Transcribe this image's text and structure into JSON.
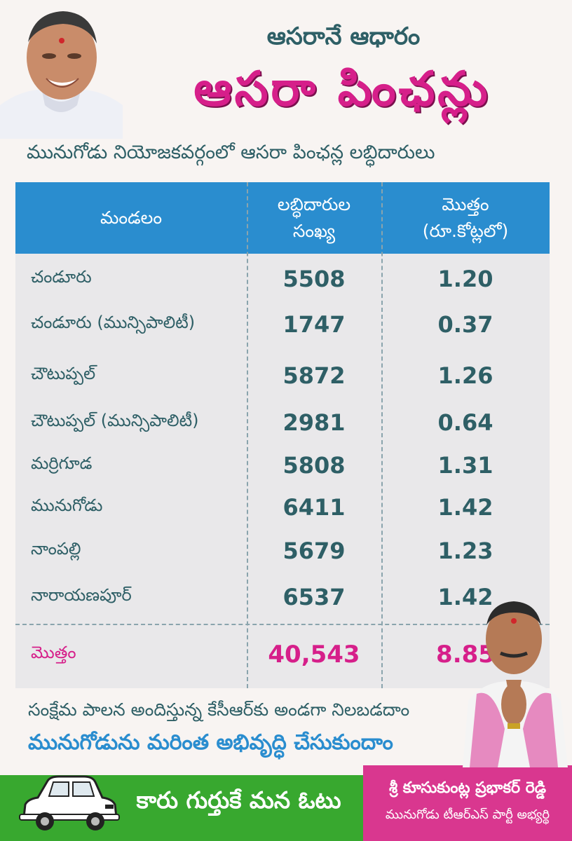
{
  "header": {
    "subtitle": "ఆసరానే ఆధారం",
    "title": "ఆసరా పింఛన్లు"
  },
  "intro": "మునుగోడు నియోజకవర్గంలో ఆసరా పింఛన్ల లబ్ధిదారులు",
  "table": {
    "headers": {
      "col1": "మండలం",
      "col2_line1": "లబ్ధిదారుల",
      "col2_line2": "సంఖ్య",
      "col3_line1": "మొత్తం",
      "col3_line2": "(రూ.కోట్లలో)"
    },
    "rows": [
      {
        "name": "చండూరు",
        "count": "5508",
        "amount": "1.20"
      },
      {
        "name": "చండూరు (మున్సిపాలిటీ)",
        "count": "1747",
        "amount": "0.37"
      },
      {
        "name": "చౌటుప్పల్",
        "count": "5872",
        "amount": "1.26"
      },
      {
        "name": "చౌటుప్పల్ (మున్సిపాలిటీ)",
        "count": "2981",
        "amount": "0.64"
      },
      {
        "name": "మర్రిగూడ",
        "count": "5808",
        "amount": "1.31"
      },
      {
        "name": "మునుగోడు",
        "count": "6411",
        "amount": "1.42"
      },
      {
        "name": "నాంపల్లి",
        "count": "5679",
        "amount": "1.23"
      },
      {
        "name": "నారాయణపూర్",
        "count": "6537",
        "amount": "1.42"
      }
    ],
    "total": {
      "name": "మొత్తం",
      "count": "40,543",
      "amount": "8.85"
    }
  },
  "footer": {
    "line1": "సంక్షేమ పాలన అందిస్తున్న కేసీఆర్‌కు అండగా నిలబడదాం",
    "line2": "మునుగోడును మరింత అభివృద్ధి చేసుకుందాం",
    "slogan": "కారు గుర్తుకే మన ఓటు",
    "candidate_name": "శ్రీ కూసుకుంట్ల ప్రభాకర్ రెడ్డి",
    "candidate_role": "మునుగోడు టీఆర్ఎస్ పార్టీ అభ్యర్థి"
  },
  "colors": {
    "teal_text": "#2e5f66",
    "magenta": "#d61f8a",
    "header_blue": "#2a8dcf",
    "green_band": "#38a82f",
    "pink_band": "#d9378f"
  },
  "icons": {
    "party_symbol": "car-icon"
  }
}
